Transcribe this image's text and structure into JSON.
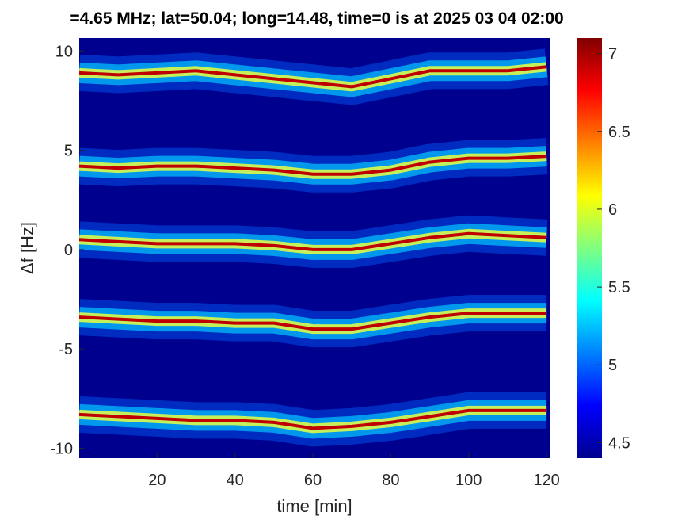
{
  "chart_data": {
    "type": "spectrogram",
    "title": "=4.65 MHz;  lat=50.04; long=14.48, time=0 is at 2025 03 04 02:00",
    "xlabel": "time [min]",
    "ylabel": "Δf [Hz]",
    "xlim": [
      0,
      121
    ],
    "ylim": [
      -10.5,
      10.65
    ],
    "xticks": [
      20,
      40,
      60,
      80,
      100,
      120
    ],
    "yticks": [
      -10,
      -5,
      0,
      5,
      10
    ],
    "background": "#00008f",
    "x": [
      0,
      10,
      20,
      30,
      40,
      50,
      60,
      70,
      80,
      90,
      100,
      110,
      120
    ],
    "series": [
      {
        "values": [
          8.9,
          8.8,
          8.9,
          9.0,
          8.8,
          8.6,
          8.4,
          8.2,
          8.6,
          9.0,
          9.0,
          9.0,
          9.2
        ]
      },
      {
        "values": [
          4.2,
          4.1,
          4.2,
          4.2,
          4.1,
          4.0,
          3.8,
          3.8,
          4.0,
          4.4,
          4.6,
          4.6,
          4.7
        ]
      },
      {
        "values": [
          0.5,
          0.4,
          0.3,
          0.3,
          0.3,
          0.2,
          0.0,
          0.0,
          0.3,
          0.6,
          0.8,
          0.7,
          0.6
        ]
      },
      {
        "values": [
          -3.4,
          -3.5,
          -3.6,
          -3.6,
          -3.7,
          -3.7,
          -4.0,
          -4.0,
          -3.7,
          -3.4,
          -3.2,
          -3.2,
          -3.2
        ]
      },
      {
        "values": [
          -8.3,
          -8.4,
          -8.5,
          -8.6,
          -8.6,
          -8.7,
          -9.0,
          -8.9,
          -8.7,
          -8.4,
          -8.1,
          -8.1,
          -8.1
        ]
      }
    ],
    "colorbar": {
      "clim": [
        4.4,
        7.1
      ],
      "ticks": [
        4.5,
        5,
        5.5,
        6,
        6.5,
        7
      ],
      "colors": [
        "#00008f",
        "#0000ff",
        "#0080ff",
        "#00ffff",
        "#80ff80",
        "#ffff00",
        "#ff8000",
        "#ff0000",
        "#800000"
      ]
    }
  }
}
